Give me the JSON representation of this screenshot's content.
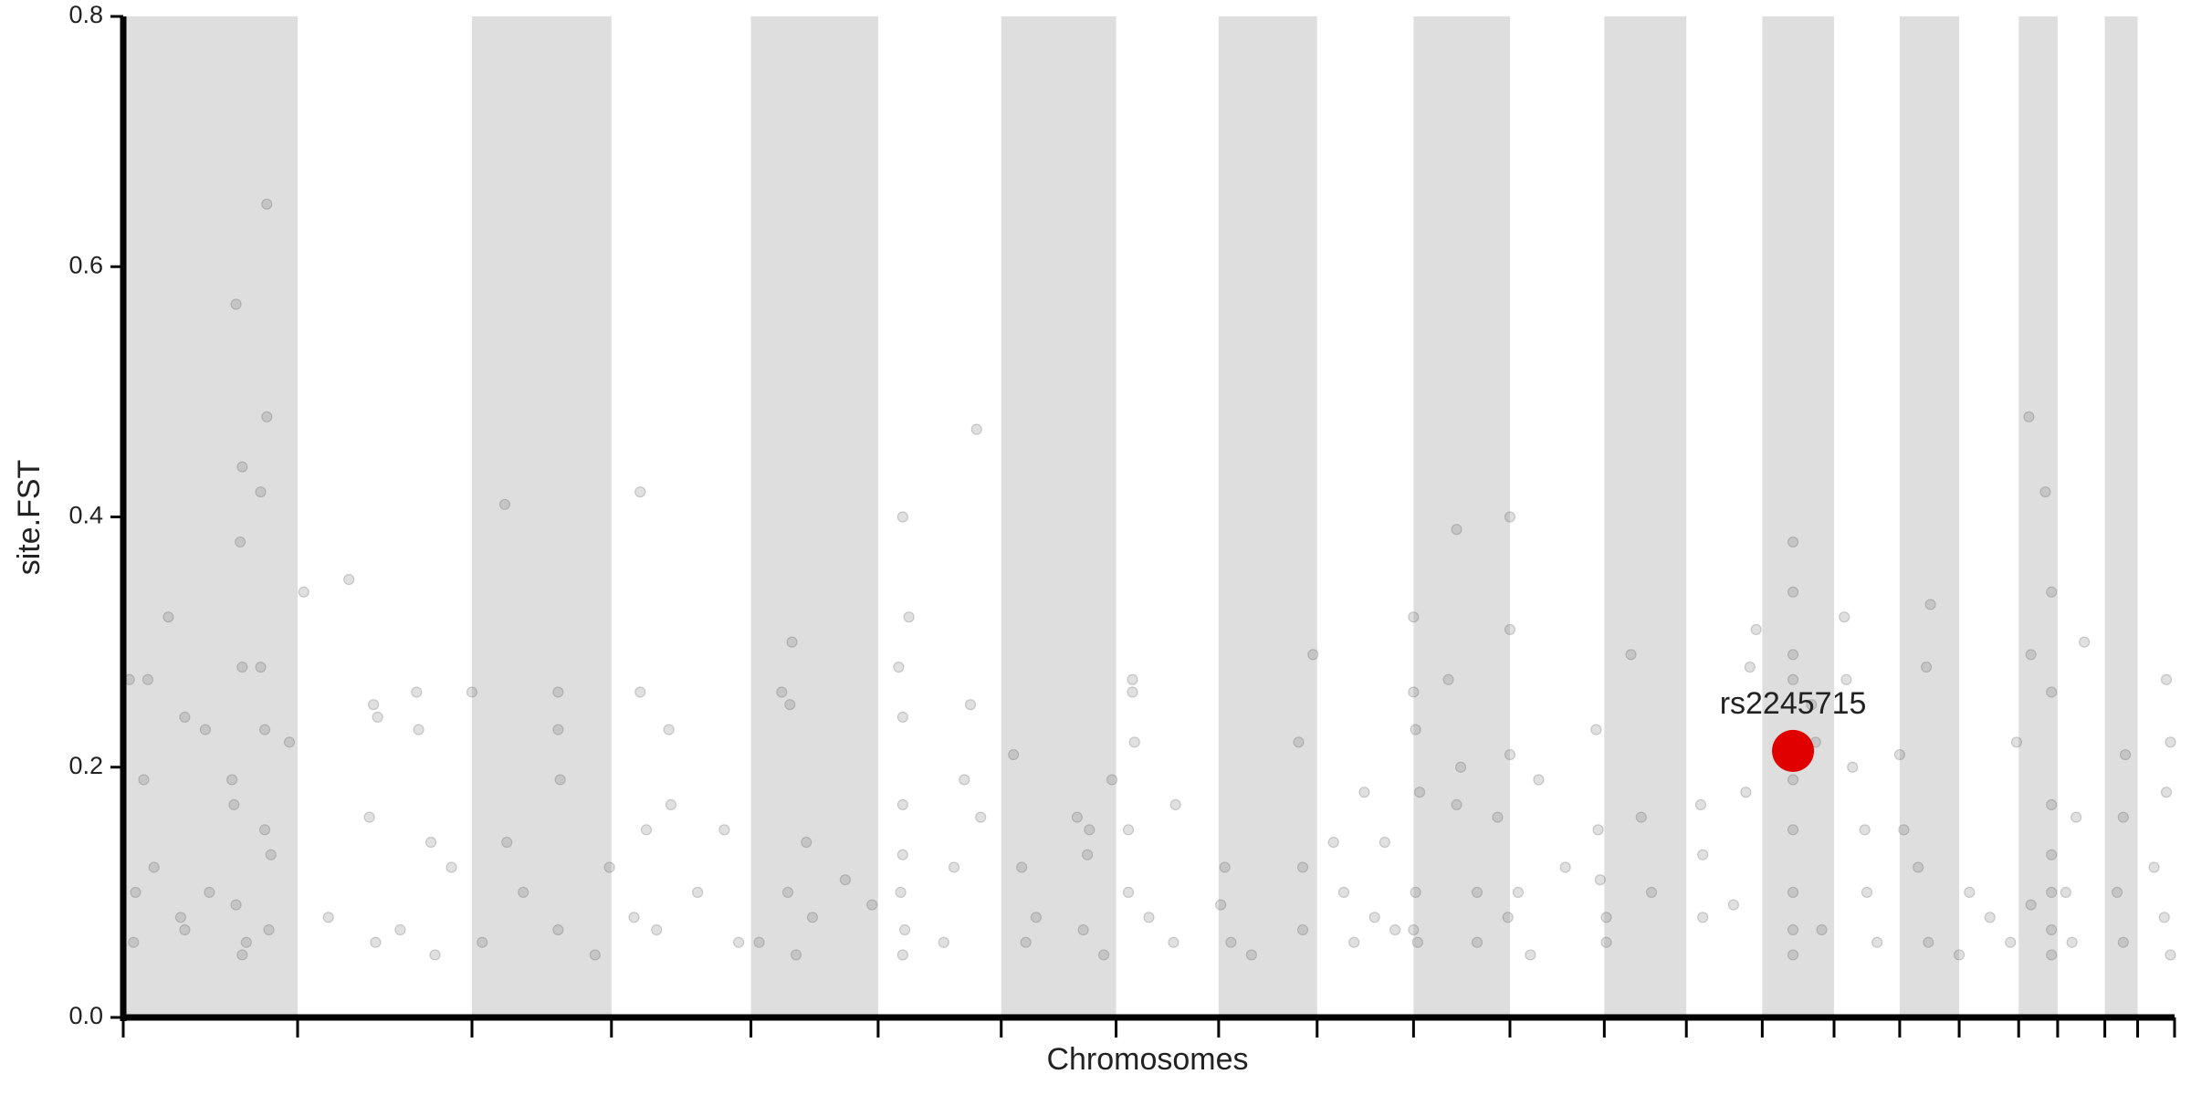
{
  "chart_data": {
    "type": "scatter",
    "x_label": "Chromosomes",
    "y_label": "site.FST",
    "xlim": [
      0,
      100
    ],
    "ylim": [
      0,
      0.8
    ],
    "xticks": [
      0,
      8.5,
      17.0,
      23.8,
      30.6,
      36.8,
      42.8,
      48.4,
      53.4,
      58.2,
      62.9,
      67.6,
      72.2,
      76.2,
      79.9,
      83.4,
      86.6,
      89.5,
      92.4,
      94.3,
      96.6,
      98.2,
      100
    ],
    "yticks": [
      {
        "value": 0,
        "label": "0.0"
      },
      0.2,
      0.4,
      0.6,
      0.8
    ],
    "band_color": "#dedede",
    "series": [
      {
        "color": "#666666",
        "x": [
          0.3,
          1.0,
          1.2,
          2.2,
          3.0,
          4.0,
          5.5,
          7.0,
          7.0,
          5.8,
          6.7,
          5.7,
          5.8,
          6.7,
          6.9,
          8.1,
          5.3,
          5.4,
          6.9,
          1.5,
          0.6,
          2.8,
          3.0,
          0.5,
          5.5,
          6.0,
          7.1,
          5.8,
          4.2,
          7.2,
          8.8,
          11.0,
          12.2,
          12.4,
          14.3,
          14.4,
          15.0,
          10.0,
          12.3,
          13.5,
          16.0,
          12.0,
          15.2,
          17.0,
          18.6,
          21.2,
          21.2,
          21.3,
          18.7,
          17.5,
          19.5,
          21.2,
          23.0,
          23.7,
          25.2,
          25.2,
          26.6,
          26.7,
          25.5,
          26.0,
          28.0,
          29.3,
          30.0,
          24.9,
          32.6,
          32.1,
          32.5,
          33.3,
          32.4,
          31.0,
          33.6,
          32.8,
          35.2,
          38.0,
          38.3,
          37.8,
          38.0,
          38.0,
          38.0,
          37.9,
          38.1,
          38.0,
          41.6,
          41.3,
          41.0,
          41.8,
          40.5,
          40.0,
          36.5,
          43.4,
          43.8,
          44.5,
          44.0,
          46.5,
          47.0,
          46.8,
          47.1,
          47.8,
          49.2,
          49.2,
          49.3,
          48.2,
          49.0,
          49.0,
          51.2,
          51.3,
          50.0,
          53.7,
          53.5,
          54.0,
          55.0,
          57.3,
          58.0,
          57.5,
          57.5,
          59.0,
          59.5,
          60.0,
          60.5,
          61.5,
          62.0,
          61.0,
          62.9,
          62.9,
          63.0,
          63.2,
          63.0,
          62.9,
          63.1,
          65.0,
          64.6,
          65.0,
          65.2,
          66.0,
          66.0,
          67.6,
          67.6,
          67.6,
          67.0,
          68.0,
          67.5,
          68.6,
          69.0,
          70.3,
          71.8,
          73.5,
          71.9,
          72.0,
          72.3,
          72.3,
          74.0,
          74.5,
          76.9,
          77.0,
          77.0,
          78.5,
          79.3,
          79.6,
          79.1,
          81.4,
          81.4,
          81.4,
          81.4,
          81.4,
          81.4,
          81.4,
          81.4,
          81.4,
          82.3,
          82.5,
          82.8,
          83.9,
          84.0,
          84.3,
          84.9,
          85.0,
          85.5,
          86.6,
          86.8,
          88.1,
          87.9,
          87.5,
          88.0,
          89.5,
          90.0,
          91.0,
          92.0,
          92.9,
          93.7,
          94.0,
          93.0,
          94.0,
          92.3,
          94.0,
          94.0,
          94.0,
          94.0,
          94.0,
          93.0,
          95.6,
          95.2,
          94.7,
          95.0,
          97.6,
          97.5,
          97.2,
          97.5,
          99.6,
          99.8,
          99.6,
          99.0,
          99.5,
          99.8
        ],
        "values": [
          0.27,
          0.19,
          0.27,
          0.32,
          0.24,
          0.23,
          0.57,
          0.65,
          0.48,
          0.44,
          0.42,
          0.38,
          0.28,
          0.28,
          0.23,
          0.22,
          0.19,
          0.17,
          0.15,
          0.12,
          0.1,
          0.08,
          0.07,
          0.06,
          0.09,
          0.06,
          0.07,
          0.05,
          0.1,
          0.13,
          0.34,
          0.35,
          0.25,
          0.24,
          0.26,
          0.23,
          0.14,
          0.08,
          0.06,
          0.07,
          0.12,
          0.16,
          0.05,
          0.26,
          0.41,
          0.26,
          0.23,
          0.19,
          0.14,
          0.06,
          0.1,
          0.07,
          0.05,
          0.12,
          0.42,
          0.26,
          0.23,
          0.17,
          0.15,
          0.07,
          0.1,
          0.15,
          0.06,
          0.08,
          0.3,
          0.26,
          0.25,
          0.14,
          0.1,
          0.06,
          0.08,
          0.05,
          0.11,
          0.4,
          0.32,
          0.28,
          0.24,
          0.17,
          0.13,
          0.1,
          0.07,
          0.05,
          0.47,
          0.25,
          0.19,
          0.16,
          0.12,
          0.06,
          0.09,
          0.21,
          0.12,
          0.08,
          0.06,
          0.16,
          0.13,
          0.07,
          0.15,
          0.05,
          0.27,
          0.26,
          0.22,
          0.19,
          0.15,
          0.1,
          0.06,
          0.17,
          0.08,
          0.12,
          0.09,
          0.06,
          0.05,
          0.22,
          0.29,
          0.12,
          0.07,
          0.14,
          0.1,
          0.06,
          0.18,
          0.14,
          0.07,
          0.08,
          0.32,
          0.26,
          0.23,
          0.18,
          0.1,
          0.07,
          0.06,
          0.39,
          0.27,
          0.17,
          0.2,
          0.1,
          0.06,
          0.4,
          0.31,
          0.21,
          0.16,
          0.1,
          0.08,
          0.05,
          0.19,
          0.12,
          0.23,
          0.29,
          0.15,
          0.11,
          0.08,
          0.06,
          0.16,
          0.1,
          0.17,
          0.13,
          0.08,
          0.09,
          0.28,
          0.31,
          0.18,
          0.38,
          0.34,
          0.29,
          0.27,
          0.19,
          0.15,
          0.1,
          0.07,
          0.05,
          0.25,
          0.22,
          0.07,
          0.32,
          0.27,
          0.2,
          0.15,
          0.1,
          0.06,
          0.21,
          0.15,
          0.33,
          0.28,
          0.12,
          0.06,
          0.05,
          0.1,
          0.08,
          0.06,
          0.48,
          0.42,
          0.34,
          0.29,
          0.26,
          0.22,
          0.17,
          0.13,
          0.1,
          0.07,
          0.05,
          0.09,
          0.3,
          0.16,
          0.1,
          0.06,
          0.21,
          0.16,
          0.1,
          0.06,
          0.27,
          0.22,
          0.18,
          0.12,
          0.08,
          0.05
        ]
      }
    ],
    "highlight": {
      "label": "rs2245715",
      "x": 81.4,
      "y": 0.213,
      "color": "#e00000"
    }
  }
}
